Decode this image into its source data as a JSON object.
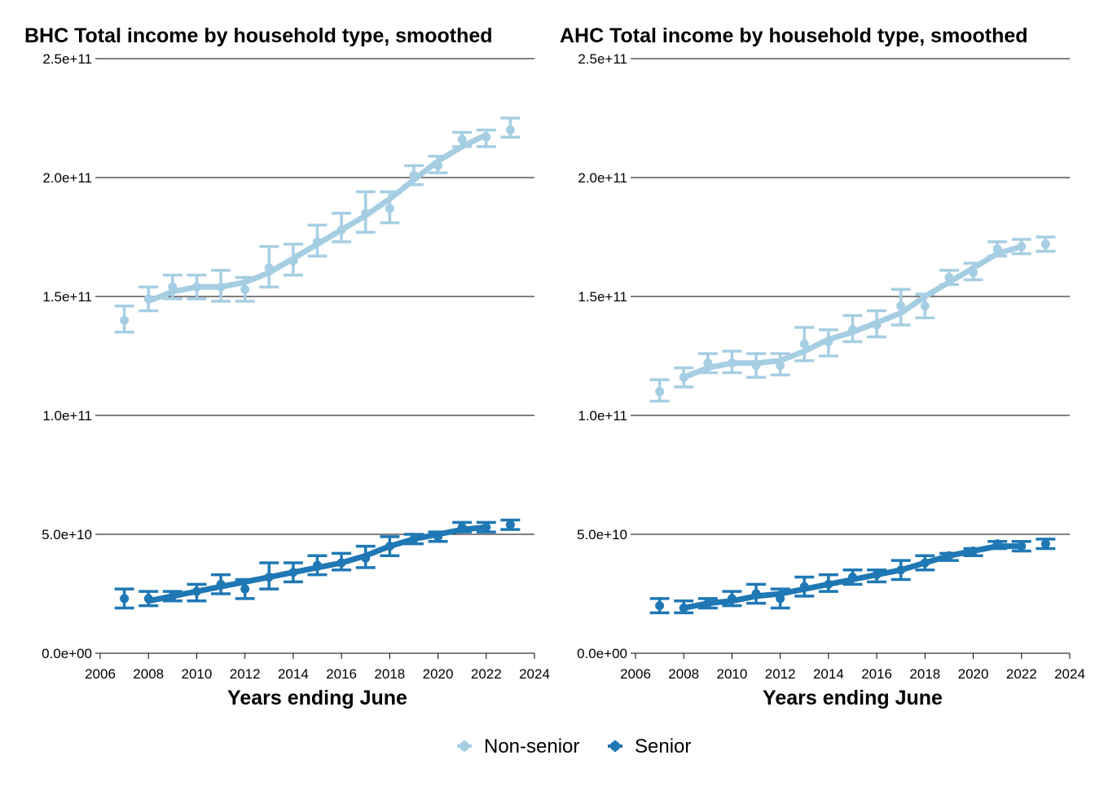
{
  "colors": {
    "non_senior": "#a6cee3",
    "senior": "#1f78b4"
  },
  "legend": [
    {
      "key": "non_senior",
      "label": "Non-senior"
    },
    {
      "key": "senior",
      "label": "Senior"
    }
  ],
  "chart_data": [
    {
      "type": "line",
      "title": "BHC Total income by household type, smoothed",
      "xlabel": "Years ending June",
      "ylabel": "",
      "xlim": [
        2006,
        2024
      ],
      "ylim": [
        0,
        250000000000.0
      ],
      "xticks": [
        "2006",
        "2008",
        "2010",
        "2012",
        "2014",
        "2016",
        "2018",
        "2020",
        "2022",
        "2024"
      ],
      "yticks": [
        "0.0e+00",
        "5.0e+10",
        "1.0e+11",
        "1.5e+11",
        "2.0e+11",
        "2.5e+11"
      ],
      "grid": "horizontal",
      "legend_position": "bottom",
      "x": [
        2007,
        2008,
        2009,
        2010,
        2011,
        2012,
        2013,
        2014,
        2015,
        2016,
        2017,
        2018,
        2019,
        2020,
        2021,
        2022,
        2023
      ],
      "series": [
        {
          "name": "Non-senior",
          "key": "non_senior",
          "points": [
            140000000000.0,
            149000000000.0,
            154000000000.0,
            154000000000.0,
            154000000000.0,
            153000000000.0,
            162000000000.0,
            165000000000.0,
            173000000000.0,
            178000000000.0,
            185000000000.0,
            187000000000.0,
            201000000000.0,
            205000000000.0,
            216000000000.0,
            217000000000.0,
            220000000000.0
          ],
          "lower": [
            135000000000.0,
            144000000000.0,
            149000000000.0,
            149000000000.0,
            148000000000.0,
            148000000000.0,
            154000000000.0,
            159000000000.0,
            167000000000.0,
            173000000000.0,
            177000000000.0,
            181000000000.0,
            197000000000.0,
            202000000000.0,
            213000000000.0,
            213000000000.0,
            217000000000.0
          ],
          "upper": [
            146000000000.0,
            154000000000.0,
            159000000000.0,
            159000000000.0,
            161000000000.0,
            158000000000.0,
            171000000000.0,
            172000000000.0,
            180000000000.0,
            185000000000.0,
            194000000000.0,
            194000000000.0,
            205000000000.0,
            209000000000.0,
            219000000000.0,
            220000000000.0,
            225000000000.0
          ],
          "smooth_x": [
            2008,
            2009,
            2010,
            2011,
            2012,
            2013,
            2014,
            2015,
            2016,
            2017,
            2018,
            2019,
            2020,
            2021,
            2022
          ],
          "smooth": [
            148000000000.0,
            152000000000.0,
            154000000000.0,
            154000000000.0,
            156000000000.0,
            160000000000.0,
            166000000000.0,
            172000000000.0,
            178000000000.0,
            184000000000.0,
            191000000000.0,
            199000000000.0,
            207000000000.0,
            213000000000.0,
            218000000000.0
          ]
        },
        {
          "name": "Senior",
          "key": "senior",
          "points": [
            23000000000.0,
            23000000000.0,
            24000000000.0,
            26000000000.0,
            29000000000.0,
            27000000000.0,
            32000000000.0,
            34000000000.0,
            37000000000.0,
            38000000000.0,
            40000000000.0,
            45000000000.0,
            48000000000.0,
            49000000000.0,
            53000000000.0,
            53000000000.0,
            54000000000.0
          ],
          "lower": [
            19000000000.0,
            20000000000.0,
            22000000000.0,
            22000000000.0,
            25000000000.0,
            23000000000.0,
            27000000000.0,
            30000000000.0,
            33000000000.0,
            35000000000.0,
            36000000000.0,
            41000000000.0,
            46000000000.0,
            47000000000.0,
            51000000000.0,
            51000000000.0,
            52000000000.0
          ],
          "upper": [
            27000000000.0,
            26000000000.0,
            26000000000.0,
            29000000000.0,
            33000000000.0,
            31000000000.0,
            38000000000.0,
            38000000000.0,
            41000000000.0,
            42000000000.0,
            45000000000.0,
            49000000000.0,
            50000000000.0,
            51000000000.0,
            55000000000.0,
            55000000000.0,
            56000000000.0
          ],
          "smooth_x": [
            2008,
            2009,
            2010,
            2011,
            2012,
            2013,
            2014,
            2015,
            2016,
            2017,
            2018,
            2019,
            2020,
            2021,
            2022
          ],
          "smooth": [
            22000000000.0,
            24000000000.0,
            26000000000.0,
            28000000000.0,
            30000000000.0,
            32000000000.0,
            34000000000.0,
            36000000000.0,
            38000000000.0,
            41000000000.0,
            45000000000.0,
            48000000000.0,
            50000000000.0,
            52000000000.0,
            53000000000.0
          ]
        }
      ]
    },
    {
      "type": "line",
      "title": "AHC Total income by household type, smoothed",
      "xlabel": "Years ending June",
      "ylabel": "",
      "xlim": [
        2006,
        2024
      ],
      "ylim": [
        0,
        250000000000.0
      ],
      "xticks": [
        "2006",
        "2008",
        "2010",
        "2012",
        "2014",
        "2016",
        "2018",
        "2020",
        "2022",
        "2024"
      ],
      "yticks": [
        "0.0e+00",
        "5.0e+10",
        "1.0e+11",
        "1.5e+11",
        "2.0e+11",
        "2.5e+11"
      ],
      "grid": "horizontal",
      "legend_position": "bottom",
      "x": [
        2007,
        2008,
        2009,
        2010,
        2011,
        2012,
        2013,
        2014,
        2015,
        2016,
        2017,
        2018,
        2019,
        2020,
        2021,
        2022,
        2023
      ],
      "series": [
        {
          "name": "Non-senior",
          "key": "non_senior",
          "points": [
            110000000000.0,
            116000000000.0,
            122000000000.0,
            122000000000.0,
            121000000000.0,
            121000000000.0,
            130000000000.0,
            131000000000.0,
            136000000000.0,
            138000000000.0,
            146000000000.0,
            146000000000.0,
            158000000000.0,
            160000000000.0,
            170000000000.0,
            171000000000.0,
            172000000000.0
          ],
          "lower": [
            106000000000.0,
            112000000000.0,
            118000000000.0,
            118000000000.0,
            116000000000.0,
            117000000000.0,
            123000000000.0,
            125000000000.0,
            131000000000.0,
            133000000000.0,
            138000000000.0,
            141000000000.0,
            155000000000.0,
            157000000000.0,
            167000000000.0,
            168000000000.0,
            169000000000.0
          ],
          "upper": [
            115000000000.0,
            120000000000.0,
            126000000000.0,
            127000000000.0,
            126000000000.0,
            126000000000.0,
            137000000000.0,
            136000000000.0,
            142000000000.0,
            144000000000.0,
            153000000000.0,
            151000000000.0,
            161000000000.0,
            164000000000.0,
            173000000000.0,
            174000000000.0,
            175000000000.0
          ],
          "smooth_x": [
            2008,
            2009,
            2010,
            2011,
            2012,
            2013,
            2014,
            2015,
            2016,
            2017,
            2018,
            2019,
            2020,
            2021,
            2022
          ],
          "smooth": [
            116000000000.0,
            120000000000.0,
            122000000000.0,
            122000000000.0,
            123000000000.0,
            127000000000.0,
            132000000000.0,
            135000000000.0,
            139000000000.0,
            143000000000.0,
            150000000000.0,
            156000000000.0,
            162000000000.0,
            168000000000.0,
            171000000000.0
          ]
        },
        {
          "name": "Senior",
          "key": "senior",
          "points": [
            20000000000.0,
            19000000000.0,
            21000000000.0,
            23000000000.0,
            25000000000.0,
            23000000000.0,
            28000000000.0,
            29000000000.0,
            32000000000.0,
            33000000000.0,
            35000000000.0,
            38000000000.0,
            41000000000.0,
            43000000000.0,
            46000000000.0,
            45000000000.0,
            46000000000.0
          ],
          "lower": [
            17000000000.0,
            17000000000.0,
            19000000000.0,
            20000000000.0,
            21000000000.0,
            19000000000.0,
            24000000000.0,
            26000000000.0,
            29000000000.0,
            30000000000.0,
            31000000000.0,
            35000000000.0,
            39000000000.0,
            41000000000.0,
            44000000000.0,
            43000000000.0,
            44000000000.0
          ],
          "upper": [
            23000000000.0,
            22000000000.0,
            23000000000.0,
            26000000000.0,
            29000000000.0,
            27000000000.0,
            32000000000.0,
            33000000000.0,
            35000000000.0,
            35000000000.0,
            39000000000.0,
            41000000000.0,
            42000000000.0,
            44000000000.0,
            47000000000.0,
            47000000000.0,
            48000000000.0
          ],
          "smooth_x": [
            2008,
            2009,
            2010,
            2011,
            2012,
            2013,
            2014,
            2015,
            2016,
            2017,
            2018,
            2019,
            2020,
            2021,
            2022
          ],
          "smooth": [
            19000000000.0,
            21000000000.0,
            22000000000.0,
            24000000000.0,
            25000000000.0,
            27000000000.0,
            29000000000.0,
            31000000000.0,
            33000000000.0,
            35000000000.0,
            38000000000.0,
            41000000000.0,
            43000000000.0,
            45000000000.0,
            45000000000.0
          ]
        }
      ]
    }
  ]
}
